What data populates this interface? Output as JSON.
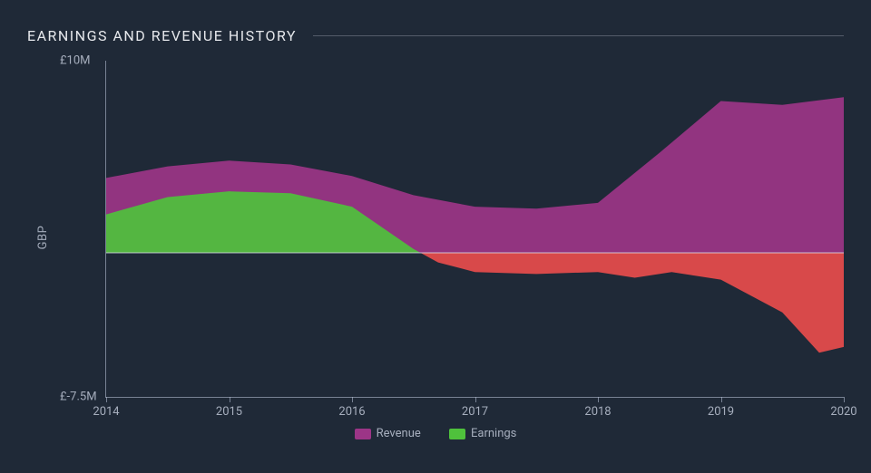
{
  "chart": {
    "type": "area",
    "title": "EARNINGS AND REVENUE HISTORY",
    "title_fontsize": 16,
    "title_color": "#e5e7eb",
    "background_color": "#1f2937",
    "ylabel": "GBP",
    "label_fontsize": 13,
    "axis_text_color": "#a6aebd",
    "axis_line_color": "#b4bed2",
    "ylim_top": 10,
    "ylim_bottom": -7.5,
    "y_top_label": "£10M",
    "y_bottom_label": "£-7.5M",
    "x_range": [
      2014,
      2020
    ],
    "x_ticks": [
      2014,
      2015,
      2016,
      2017,
      2018,
      2019,
      2020
    ],
    "zero_line": true,
    "zero_line_color": "#dde1eb",
    "series": [
      {
        "name": "Revenue",
        "color": "#9c3587",
        "fill_opacity": 0.92,
        "points": [
          {
            "x": 2014,
            "y": 3.9
          },
          {
            "x": 2014.5,
            "y": 4.5
          },
          {
            "x": 2015,
            "y": 4.8
          },
          {
            "x": 2015.5,
            "y": 4.6
          },
          {
            "x": 2016,
            "y": 4.0
          },
          {
            "x": 2016.5,
            "y": 3.0
          },
          {
            "x": 2017,
            "y": 2.4
          },
          {
            "x": 2017.5,
            "y": 2.3
          },
          {
            "x": 2018,
            "y": 2.6
          },
          {
            "x": 2018.5,
            "y": 5.2
          },
          {
            "x": 2019,
            "y": 7.9
          },
          {
            "x": 2019.5,
            "y": 7.7
          },
          {
            "x": 2020,
            "y": 8.1
          }
        ]
      },
      {
        "name": "Earnings",
        "color_positive": "#4fc13c",
        "color_negative": "#e84c4c",
        "fill_opacity": 0.92,
        "points": [
          {
            "x": 2014,
            "y": 2.0
          },
          {
            "x": 2014.5,
            "y": 2.9
          },
          {
            "x": 2015,
            "y": 3.2
          },
          {
            "x": 2015.5,
            "y": 3.1
          },
          {
            "x": 2016,
            "y": 2.4
          },
          {
            "x": 2016.5,
            "y": 0.2
          },
          {
            "x": 2016.7,
            "y": -0.5
          },
          {
            "x": 2017,
            "y": -1.0
          },
          {
            "x": 2017.5,
            "y": -1.1
          },
          {
            "x": 2018,
            "y": -1.0
          },
          {
            "x": 2018.3,
            "y": -1.3
          },
          {
            "x": 2018.6,
            "y": -1.0
          },
          {
            "x": 2019,
            "y": -1.4
          },
          {
            "x": 2019.5,
            "y": -3.1
          },
          {
            "x": 2019.8,
            "y": -5.2
          },
          {
            "x": 2020,
            "y": -4.9
          }
        ]
      }
    ],
    "legend": {
      "items": [
        {
          "label": "Revenue",
          "color": "#9c3587"
        },
        {
          "label": "Earnings",
          "color": "#4fc13c"
        }
      ]
    }
  }
}
